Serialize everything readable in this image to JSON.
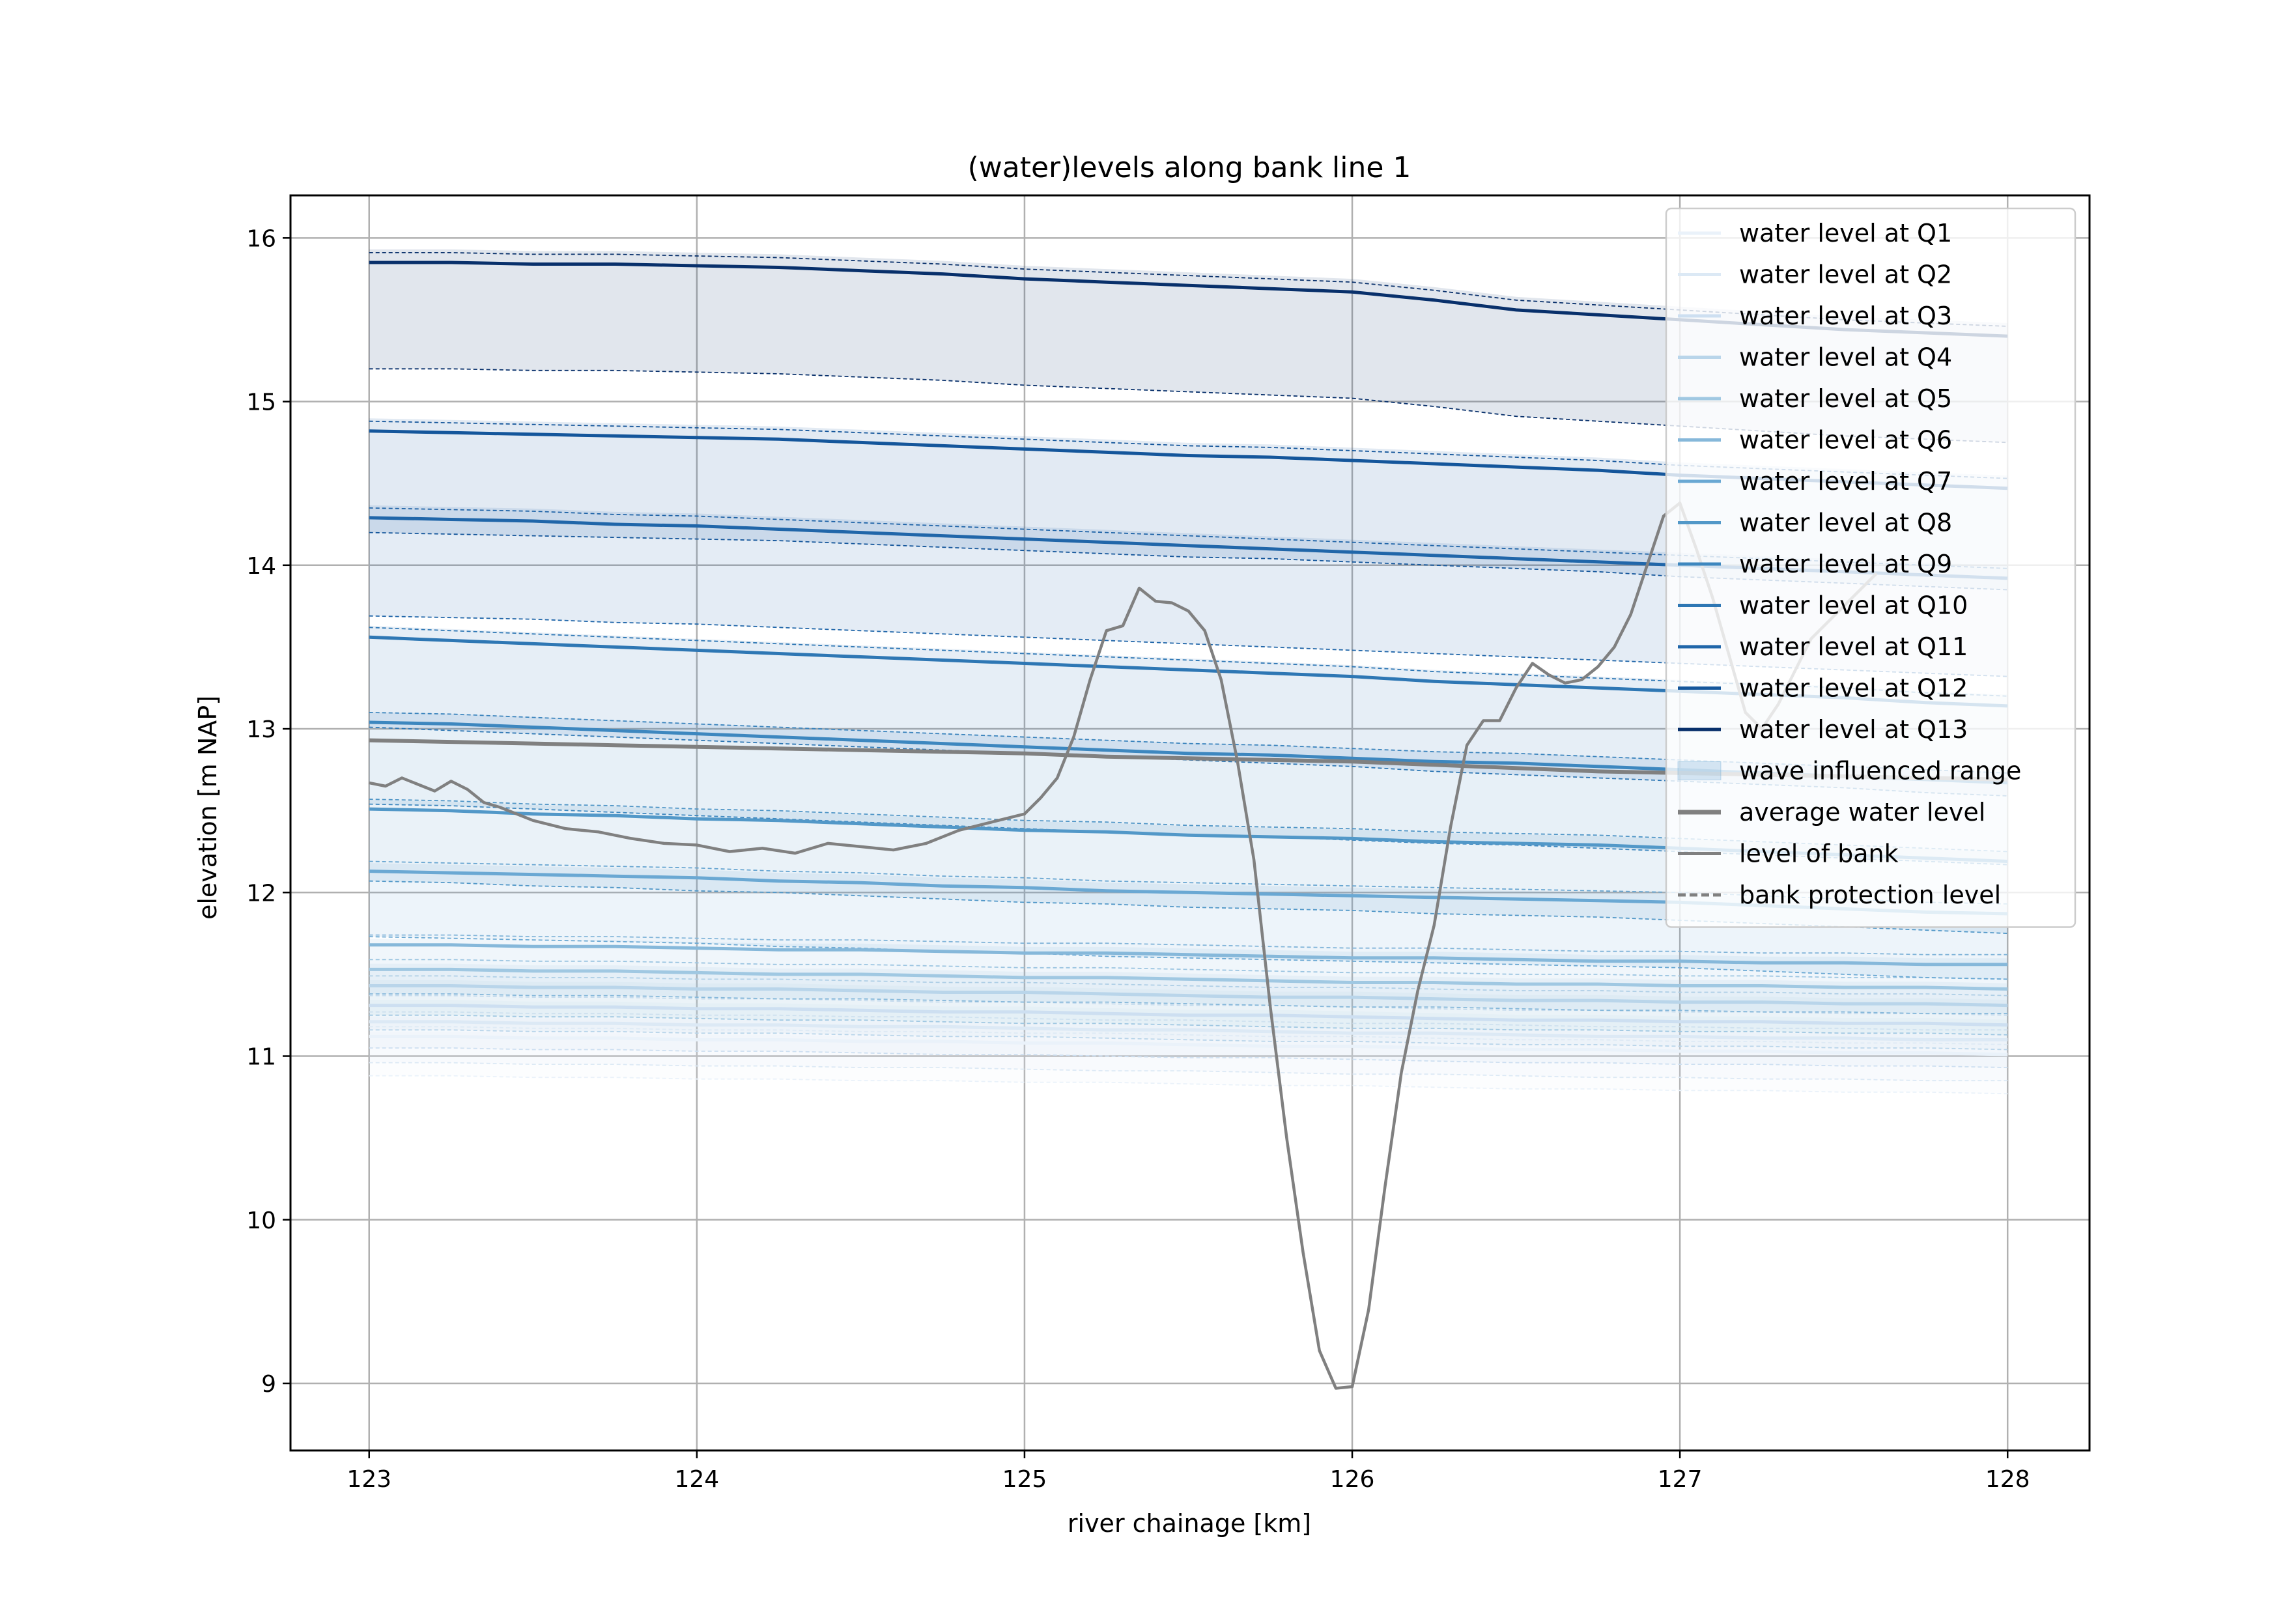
{
  "chart_data": {
    "type": "line",
    "title": "(water)levels along bank line 1",
    "xlabel": "river chainage [km]",
    "ylabel": "elevation [m NAP]",
    "xlim": [
      122.76,
      128.25
    ],
    "ylim": [
      8.59,
      16.26
    ],
    "xticks": [
      123,
      124,
      125,
      126,
      127,
      128
    ],
    "yticks": [
      9,
      10,
      11,
      12,
      13,
      14,
      15,
      16
    ],
    "grid": true,
    "legend_position": "top-right",
    "x": [
      123.0,
      123.25,
      123.5,
      123.75,
      124.0,
      124.25,
      124.5,
      124.75,
      125.0,
      125.25,
      125.5,
      125.75,
      126.0,
      126.25,
      126.5,
      126.75,
      127.0,
      127.25,
      127.5,
      127.75,
      128.0
    ],
    "series": [
      {
        "name": "water level at Q1",
        "color": "#eaf2fa",
        "values": [
          11.12,
          11.12,
          11.11,
          11.11,
          11.1,
          11.1,
          11.09,
          11.09,
          11.08,
          11.08,
          11.07,
          11.06,
          11.06,
          11.05,
          11.04,
          11.04,
          11.03,
          11.03,
          11.02,
          11.02,
          11.01
        ],
        "band": [
          0.3,
          0.24
        ]
      },
      {
        "name": "water level at Q2",
        "color": "#dce9f5",
        "values": [
          11.21,
          11.21,
          11.2,
          11.2,
          11.19,
          11.19,
          11.18,
          11.18,
          11.17,
          11.16,
          11.16,
          11.15,
          11.14,
          11.14,
          11.13,
          11.12,
          11.12,
          11.11,
          11.11,
          11.1,
          11.1
        ],
        "band": [
          0.32,
          0.25
        ]
      },
      {
        "name": "water level at Q3",
        "color": "#cddff1",
        "values": [
          11.31,
          11.31,
          11.3,
          11.3,
          11.29,
          11.29,
          11.28,
          11.27,
          11.27,
          11.26,
          11.25,
          11.25,
          11.24,
          11.23,
          11.22,
          11.22,
          11.21,
          11.21,
          11.2,
          11.2,
          11.19
        ],
        "band": [
          0.33,
          0.26
        ]
      },
      {
        "name": "water level at Q4",
        "color": "#b9d5ea",
        "values": [
          11.43,
          11.43,
          11.42,
          11.42,
          11.41,
          11.41,
          11.4,
          11.39,
          11.39,
          11.38,
          11.37,
          11.36,
          11.36,
          11.35,
          11.34,
          11.34,
          11.33,
          11.33,
          11.32,
          11.32,
          11.31
        ],
        "band": [
          0.34,
          0.27
        ]
      },
      {
        "name": "water level at Q5",
        "color": "#a0c8e2",
        "values": [
          11.53,
          11.53,
          11.52,
          11.52,
          11.51,
          11.5,
          11.5,
          11.49,
          11.48,
          11.48,
          11.47,
          11.46,
          11.45,
          11.45,
          11.44,
          11.44,
          11.43,
          11.43,
          11.42,
          11.42,
          11.41
        ],
        "band": [
          0.35,
          0.28
        ]
      },
      {
        "name": "water level at Q6",
        "color": "#86b8da",
        "values": [
          11.68,
          11.68,
          11.67,
          11.67,
          11.66,
          11.65,
          11.65,
          11.64,
          11.63,
          11.63,
          11.62,
          11.61,
          11.6,
          11.6,
          11.59,
          11.58,
          11.58,
          11.57,
          11.57,
          11.56,
          11.56
        ],
        "band": [
          0.38,
          0.3
        ]
      },
      {
        "name": "water level at Q7",
        "color": "#6aa8d3",
        "values": [
          12.13,
          12.12,
          12.11,
          12.1,
          12.09,
          12.07,
          12.06,
          12.04,
          12.03,
          12.01,
          12.0,
          11.99,
          11.98,
          11.97,
          11.96,
          11.95,
          11.94,
          11.92,
          11.9,
          11.88,
          11.87
        ],
        "band": [
          0.5,
          0.4
        ]
      },
      {
        "name": "water level at Q8",
        "color": "#5298c8",
        "values": [
          12.51,
          12.5,
          12.48,
          12.47,
          12.45,
          12.44,
          12.42,
          12.4,
          12.38,
          12.37,
          12.35,
          12.34,
          12.33,
          12.31,
          12.3,
          12.29,
          12.27,
          12.25,
          12.23,
          12.21,
          12.19
        ],
        "band": [
          0.55,
          0.44
        ]
      },
      {
        "name": "water level at Q9",
        "color": "#3d87bf",
        "values": [
          13.04,
          13.03,
          13.01,
          12.99,
          12.97,
          12.95,
          12.93,
          12.91,
          12.89,
          12.87,
          12.85,
          12.84,
          12.82,
          12.8,
          12.79,
          12.77,
          12.75,
          12.73,
          12.71,
          12.69,
          12.67
        ],
        "band": [
          0.62,
          0.5
        ]
      },
      {
        "name": "water level at Q10",
        "color": "#2e77b4",
        "values": [
          13.56,
          13.54,
          13.52,
          13.5,
          13.48,
          13.46,
          13.44,
          13.42,
          13.4,
          13.38,
          13.36,
          13.34,
          13.32,
          13.29,
          13.27,
          13.25,
          13.23,
          13.21,
          13.19,
          13.16,
          13.14
        ],
        "band": [
          0.7,
          0.55
        ]
      },
      {
        "name": "water level at Q11",
        "color": "#2066a9",
        "values": [
          14.29,
          14.28,
          14.27,
          14.25,
          14.24,
          14.22,
          14.2,
          14.18,
          14.16,
          14.14,
          14.12,
          14.1,
          14.08,
          14.06,
          14.04,
          14.02,
          14.0,
          13.98,
          13.96,
          13.94,
          13.92
        ],
        "band": [
          0.76,
          0.6
        ]
      },
      {
        "name": "water level at Q12",
        "color": "#14569b",
        "values": [
          14.82,
          14.81,
          14.8,
          14.79,
          14.78,
          14.77,
          14.75,
          14.73,
          14.71,
          14.69,
          14.67,
          14.66,
          14.64,
          14.62,
          14.6,
          14.58,
          14.55,
          14.53,
          14.51,
          14.49,
          14.47
        ],
        "band": [
          0.78,
          0.62
        ]
      },
      {
        "name": "water level at Q13",
        "color": "#08306b",
        "values": [
          15.85,
          15.85,
          15.84,
          15.84,
          15.83,
          15.82,
          15.8,
          15.78,
          15.75,
          15.73,
          15.71,
          15.69,
          15.67,
          15.62,
          15.56,
          15.53,
          15.5,
          15.47,
          15.44,
          15.42,
          15.4
        ],
        "band": [
          0.8,
          0.65
        ]
      }
    ],
    "average_water_level": {
      "name": "average water level",
      "color": "#808080",
      "values": [
        12.93,
        12.92,
        12.91,
        12.9,
        12.89,
        12.88,
        12.87,
        12.86,
        12.85,
        12.83,
        12.82,
        12.81,
        12.8,
        12.78,
        12.76,
        12.74,
        12.73,
        12.72,
        12.71,
        12.7,
        12.69
      ]
    },
    "bank_level": {
      "name": "level of bank",
      "color": "#808080",
      "x": [
        123.0,
        123.05,
        123.1,
        123.15,
        123.2,
        123.25,
        123.3,
        123.35,
        123.4,
        123.5,
        123.6,
        123.7,
        123.8,
        123.9,
        124.0,
        124.1,
        124.2,
        124.3,
        124.4,
        124.5,
        124.6,
        124.7,
        124.8,
        124.9,
        125.0,
        125.05,
        125.1,
        125.15,
        125.2,
        125.25,
        125.3,
        125.35,
        125.4,
        125.45,
        125.5,
        125.55,
        125.6,
        125.65,
        125.7,
        125.75,
        125.8,
        125.85,
        125.9,
        125.95,
        126.0,
        126.05,
        126.1,
        126.15,
        126.2,
        126.25,
        126.3,
        126.35,
        126.4,
        126.45,
        126.5,
        126.55,
        126.6,
        126.65,
        126.7,
        126.75,
        126.8,
        126.85,
        126.9,
        126.95,
        127.0,
        127.05,
        127.1,
        127.15,
        127.2,
        127.25,
        127.3,
        127.35,
        127.4,
        127.5,
        127.6
      ],
      "values": [
        12.67,
        12.65,
        12.7,
        12.66,
        12.62,
        12.68,
        12.63,
        12.55,
        12.52,
        12.44,
        12.39,
        12.37,
        12.33,
        12.3,
        12.29,
        12.25,
        12.27,
        12.24,
        12.3,
        12.28,
        12.26,
        12.3,
        12.38,
        12.43,
        12.48,
        12.58,
        12.7,
        12.95,
        13.3,
        13.6,
        13.63,
        13.86,
        13.78,
        13.77,
        13.72,
        13.6,
        13.3,
        12.8,
        12.2,
        11.3,
        10.5,
        9.8,
        9.2,
        8.97,
        8.98,
        9.45,
        10.2,
        10.9,
        11.4,
        11.8,
        12.4,
        12.9,
        13.05,
        13.05,
        13.25,
        13.4,
        13.33,
        13.28,
        13.3,
        13.38,
        13.5,
        13.7,
        14.0,
        14.3,
        14.38,
        14.1,
        13.8,
        13.45,
        13.1,
        13.0,
        13.15,
        13.35,
        13.55,
        13.75,
        13.95
      ]
    },
    "bank_protection_label": "bank protection level",
    "wave_range_label": "wave influenced range"
  }
}
